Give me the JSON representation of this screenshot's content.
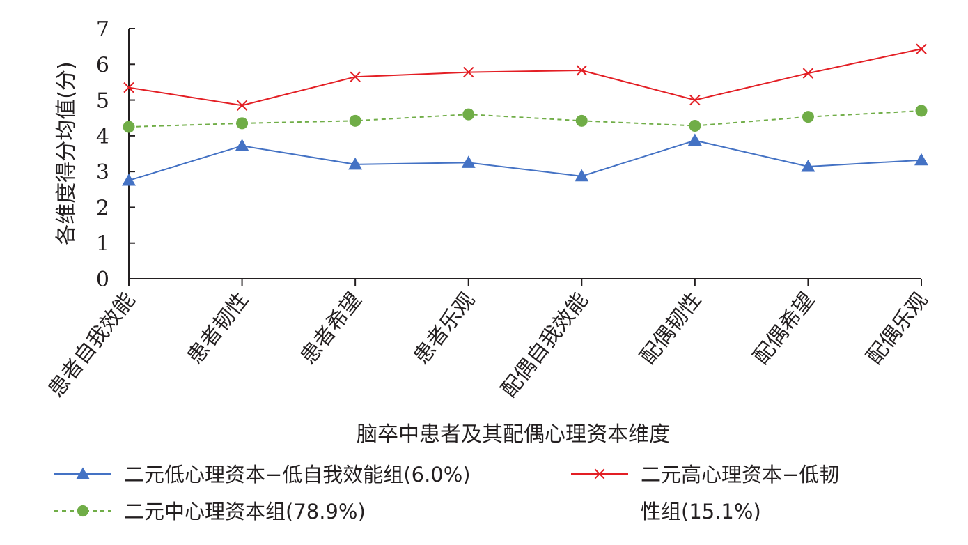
{
  "chart_data": {
    "type": "line",
    "title": "",
    "xlabel": "脑卒中患者及其配偶心理资本维度",
    "ylabel": "各维度得分均值(分)",
    "ylim": [
      0,
      7
    ],
    "yticks": [
      0,
      1,
      2,
      3,
      4,
      5,
      6,
      7
    ],
    "grid": false,
    "legend_position": "bottom",
    "categories": [
      "患者自我效能",
      "患者韧性",
      "患者希望",
      "患者乐观",
      "配偶自我效能",
      "配偶韧性",
      "配偶希望",
      "配偶乐观"
    ],
    "series": [
      {
        "name": "二元低心理资本−低自我效能组(6.0%)",
        "values": [
          2.75,
          3.72,
          3.2,
          3.25,
          2.87,
          3.87,
          3.14,
          3.32
        ],
        "color": "#4472c4",
        "marker": "triangle",
        "line_style": "solid"
      },
      {
        "name": "二元高心理资本−低韧性组(15.1%)",
        "name_lines": [
          "二元高心理资本−低韧",
          "性组(15.1%)"
        ],
        "values": [
          5.35,
          4.85,
          5.65,
          5.78,
          5.83,
          5.0,
          5.75,
          6.43
        ],
        "color": "#e31e24",
        "marker": "x",
        "line_style": "solid"
      },
      {
        "name": "二元中心理资本组(78.9%)",
        "values": [
          4.25,
          4.35,
          4.42,
          4.6,
          4.42,
          4.28,
          4.53,
          4.7
        ],
        "color": "#70ad47",
        "marker": "circle",
        "line_style": "dashed"
      }
    ]
  }
}
